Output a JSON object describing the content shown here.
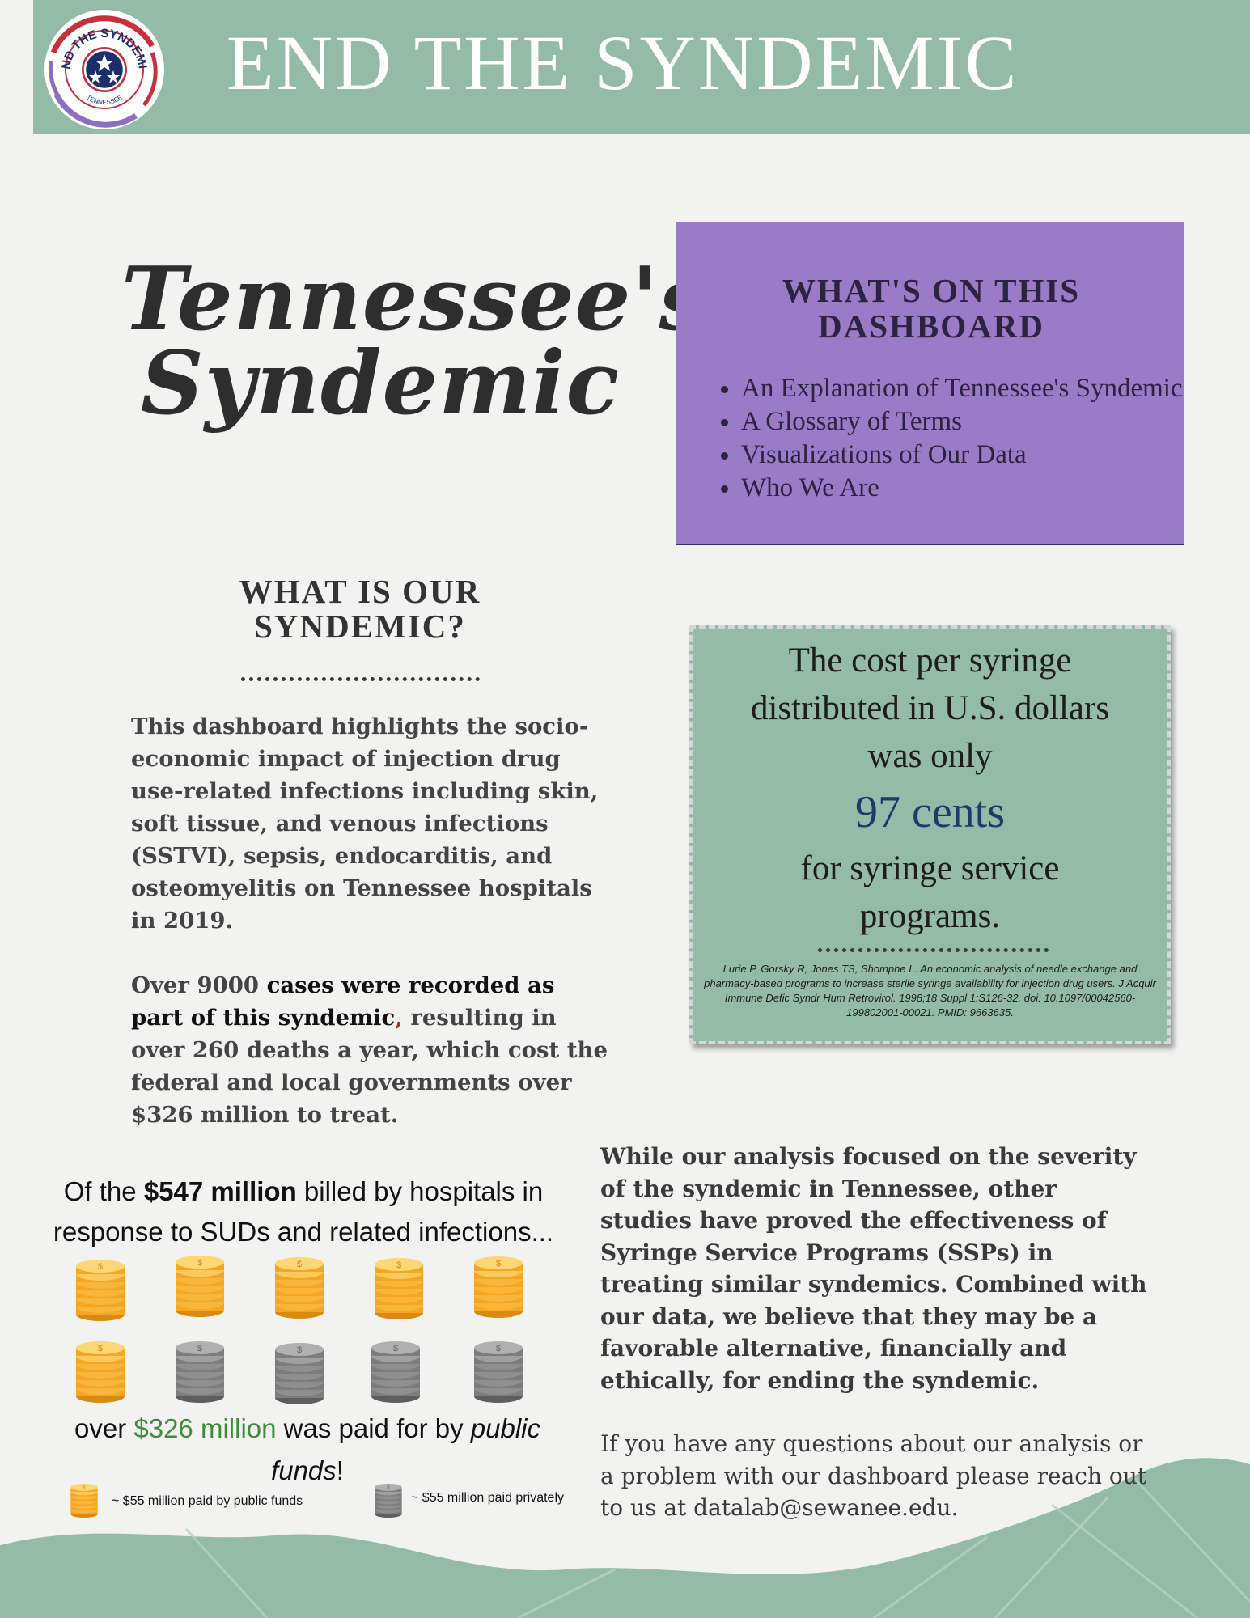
{
  "header": {
    "title": "END THE SYNDEMIC",
    "logo_text_top": "END THE SYNDEMIC",
    "logo_text_bottom": "TENNESSEE",
    "colors": {
      "banner": "#93bba8",
      "text": "#ffffff"
    }
  },
  "main_title": {
    "line1": "Tennessee's",
    "line2": "Syndemic"
  },
  "dashboard_box": {
    "heading_line1": "WHAT'S ON THIS",
    "heading_line2": "DASHBOARD",
    "items": [
      {
        "label": "An Explanation of Tennessee's Syndemic"
      },
      {
        "label": "A Glossary of Terms"
      },
      {
        "label": "Visualizations of Our Data"
      },
      {
        "label": "Who We Are"
      }
    ],
    "color": "#9a7bc7"
  },
  "what_section": {
    "heading_line1": "WHAT IS OUR",
    "heading_line2": "SYNDEMIC?",
    "paragraph1": "This dashboard highlights the socio-economic impact of injection drug use-related infections including skin, soft tissue, and venous infections (SSTVI), sepsis, endocarditis, and osteomyelitis on Tennessee hospitals in 2019.",
    "p2_part1": "Over 9000 ",
    "p2_part2": "cases were recorded as part of this syndemic",
    "p2_part3": ",",
    "p2_part4": " resulting in over 260 deaths a year, which cost the federal and local governments over $326 million to treat."
  },
  "cost_box": {
    "line1": "The cost per syringe",
    "line2": "distributed in U.S. dollars",
    "line3": "was only",
    "highlight": "97 cents",
    "line4": "for syringe service",
    "line5": "programs.",
    "citation": "Lurie P, Gorsky R, Jones TS, Shomphe L. An economic analysis of needle exchange and pharmacy-based programs to increase sterile syringe availability for injection drug users. J Acquir Immune Defic Syndr Hum Retrovirol. 1998;18 Suppl 1:S126-32. doi: 10.1097/00042560-199802001-00021. PMID: 9663635."
  },
  "billing": {
    "intro_part1": "Of the ",
    "intro_bold": "$547 million",
    "intro_part2": " billed by hospitals in response to SUDs and related infections...",
    "coins_public": 6,
    "coins_private": 4,
    "paid_part1": "over ",
    "paid_green": "$326 million",
    "paid_part2": " was paid for by ",
    "paid_italic": "public funds",
    "paid_part3": "!",
    "legend_public": "~ $55 million paid by public funds",
    "legend_private": "~ $55 million paid privately",
    "colors": {
      "public": "#f5a623",
      "private": "#8c8c8c"
    }
  },
  "right_section": {
    "paragraph1": "While our analysis focused on the severity of the syndemic in Tennessee, other studies have  proved the effectiveness of Syringe Service Programs (SSPs) in treating similar syndemics. Combined with our data,  we believe that they may be a favorable alternative, financially and ethically, for ending the syndemic.",
    "paragraph2": "If you have any questions about our analysis or a problem with our dashboard please reach out to us at datalab@sewanee.edu."
  }
}
